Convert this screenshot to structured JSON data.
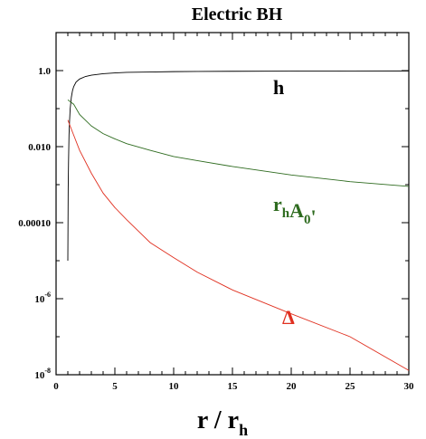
{
  "chart_data": {
    "type": "line",
    "title": "Electric BH",
    "xlabel": {
      "main": "r / r",
      "sub": "h"
    },
    "ylabel": "",
    "xlim": [
      0,
      30
    ],
    "ylim": [
      1e-08,
      10
    ],
    "yscale": "log",
    "grid": false,
    "x_ticks": [
      0,
      5,
      10,
      15,
      20,
      25,
      30
    ],
    "x_tick_labels": [
      "0",
      "5",
      "10",
      "15",
      "20",
      "25",
      "30"
    ],
    "y_ticks": [
      1e-08,
      1e-06,
      0.0001,
      0.01,
      1
    ],
    "y_tick_labels": [
      {
        "base": "10",
        "exp": "-8"
      },
      {
        "base": "10",
        "exp": "-6"
      },
      {
        "base": "0.00010",
        "exp": ""
      },
      {
        "base": "0.010",
        "exp": ""
      },
      {
        "base": "1.0",
        "exp": ""
      }
    ],
    "series": [
      {
        "key": "h",
        "color": "#000000",
        "label_parts": [
          {
            "text": "h",
            "sub": ""
          }
        ],
        "x": [
          1.0,
          1.03,
          1.06,
          1.1,
          1.15,
          1.2,
          1.3,
          1.4,
          1.5,
          1.7,
          2,
          2.5,
          3,
          4,
          5,
          6,
          8,
          10,
          12,
          15,
          20,
          25,
          30
        ],
        "y": [
          1e-05,
          0.0008,
          0.004,
          0.02,
          0.05,
          0.1,
          0.2,
          0.3,
          0.38,
          0.5,
          0.6,
          0.7,
          0.76,
          0.83,
          0.87,
          0.9,
          0.92,
          0.94,
          0.95,
          0.96,
          0.97,
          0.975,
          0.98
        ]
      },
      {
        "key": "rhA0",
        "color": "#2e6b1f",
        "label_parts": [
          {
            "text": "r",
            "sub": "h"
          },
          {
            "text": "A",
            "sub": "0"
          },
          {
            "text": "'",
            "sub": ""
          }
        ],
        "x": [
          1,
          1.5,
          2,
          3,
          4,
          5,
          6,
          8,
          10,
          12,
          15,
          20,
          25,
          30
        ],
        "y": [
          0.17,
          0.13,
          0.07,
          0.035,
          0.022,
          0.016,
          0.012,
          0.008,
          0.0055,
          0.0043,
          0.003,
          0.0018,
          0.0012,
          0.0009
        ]
      },
      {
        "key": "Delta",
        "color": "#e03020",
        "label_parts": [
          {
            "text": "Δ",
            "sub": ""
          }
        ],
        "x": [
          1,
          1.5,
          2,
          3,
          4,
          5,
          6,
          8,
          10,
          12,
          15,
          20,
          25,
          30
        ],
        "y": [
          0.05,
          0.02,
          0.008,
          0.002,
          0.0006,
          0.00025,
          0.00012,
          3e-05,
          1.2e-05,
          5e-06,
          1.7e-06,
          4e-07,
          1e-07,
          1.3e-08
        ]
      }
    ]
  }
}
